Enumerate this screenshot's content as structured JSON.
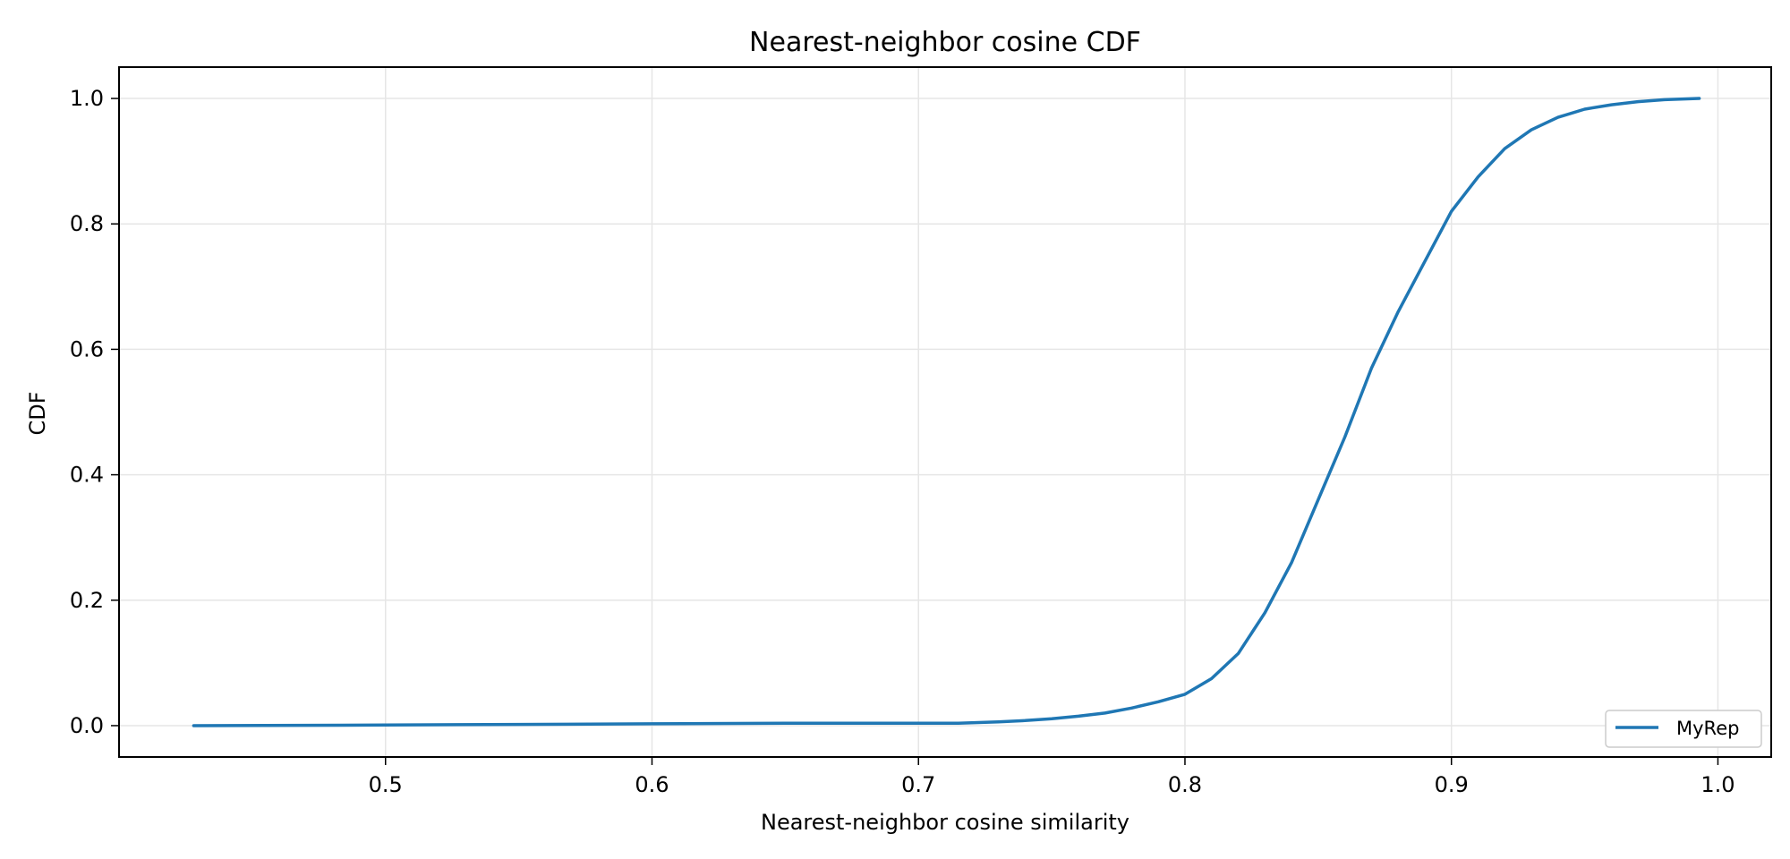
{
  "chart_data": {
    "type": "line",
    "title": "Nearest-neighbor cosine CDF",
    "xlabel": "Nearest-neighbor cosine similarity",
    "ylabel": "CDF",
    "xlim": [
      0.4,
      1.02
    ],
    "ylim": [
      -0.05,
      1.05
    ],
    "xticks": [
      0.5,
      0.6,
      0.7,
      0.8,
      0.9,
      1.0
    ],
    "xtick_labels": [
      "0.5",
      "0.6",
      "0.7",
      "0.8",
      "0.9",
      "1.0"
    ],
    "yticks": [
      0.0,
      0.2,
      0.4,
      0.6,
      0.8,
      1.0
    ],
    "ytick_labels": [
      "0.0",
      "0.2",
      "0.4",
      "0.6",
      "0.8",
      "1.0"
    ],
    "grid": true,
    "legend_position": "lower-right",
    "series": [
      {
        "name": "MyRep",
        "color": "#1f77b4",
        "x": [
          0.428,
          0.5,
          0.55,
          0.6,
          0.65,
          0.7,
          0.715,
          0.73,
          0.74,
          0.75,
          0.76,
          0.77,
          0.78,
          0.79,
          0.8,
          0.81,
          0.82,
          0.83,
          0.84,
          0.85,
          0.86,
          0.87,
          0.88,
          0.89,
          0.9,
          0.91,
          0.92,
          0.93,
          0.94,
          0.95,
          0.96,
          0.97,
          0.98,
          0.993
        ],
        "y": [
          0.0,
          0.001,
          0.002,
          0.003,
          0.004,
          0.004,
          0.004,
          0.006,
          0.008,
          0.011,
          0.015,
          0.02,
          0.028,
          0.038,
          0.05,
          0.075,
          0.115,
          0.18,
          0.26,
          0.36,
          0.46,
          0.57,
          0.66,
          0.74,
          0.82,
          0.875,
          0.92,
          0.95,
          0.97,
          0.983,
          0.99,
          0.995,
          0.998,
          1.0
        ]
      }
    ]
  }
}
